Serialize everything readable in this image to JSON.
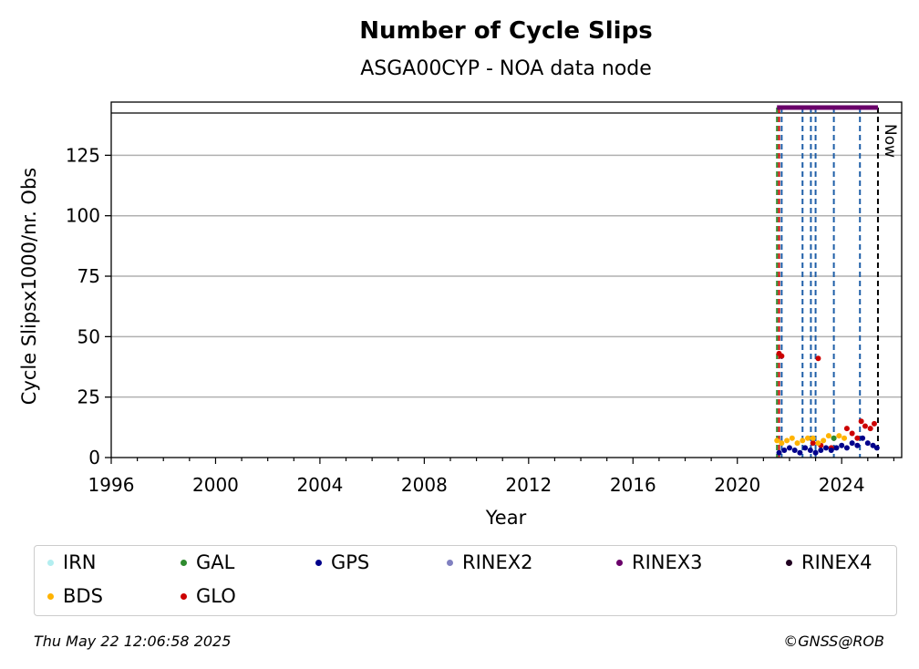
{
  "chart_data": {
    "type": "scatter",
    "title": "Number of Cycle Slips",
    "subtitle": "ASGA00CYP - NOA data node",
    "xlabel": "Year",
    "ylabel": "Cycle Slipsx1000/nr. Obs",
    "xlim": [
      1996,
      2026.3
    ],
    "ylim": [
      0,
      147
    ],
    "x_ticks": [
      "1996",
      "2000",
      "2004",
      "2008",
      "2012",
      "2016",
      "2020",
      "2024"
    ],
    "y_ticks": [
      "0",
      "25",
      "50",
      "75",
      "100",
      "125"
    ],
    "grid": "horizontal",
    "now_label": "Now",
    "now_x": 2025.39,
    "data_start_x": 2021.52,
    "rinex3_band": {
      "y": 147,
      "x_range": [
        2021.52,
        2025.39
      ]
    },
    "event_lines": [
      {
        "x": 2021.52,
        "color": "#2e8b2e"
      },
      {
        "x": 2021.6,
        "color": "#cc0000"
      },
      {
        "x": 2021.7,
        "color": "#1f5fa8"
      },
      {
        "x": 2022.5,
        "color": "#1f5fa8"
      },
      {
        "x": 2022.82,
        "color": "#1f5fa8"
      },
      {
        "x": 2023.0,
        "color": "#1f5fa8"
      },
      {
        "x": 2023.7,
        "color": "#1f5fa8"
      },
      {
        "x": 2024.7,
        "color": "#1f5fa8"
      }
    ],
    "series": [
      {
        "name": "GLO",
        "color": "#cc0000",
        "x": [
          2021.6,
          2021.7,
          2022.9,
          2023.1,
          2023.2,
          2023.6,
          2024.2,
          2024.4,
          2024.6,
          2024.75,
          2024.9,
          2025.1,
          2025.25
        ],
        "y": [
          43,
          42,
          6,
          41,
          5,
          4,
          12,
          10,
          8,
          15,
          13,
          12,
          14
        ]
      },
      {
        "name": "BDS",
        "color": "#ffb300",
        "x": [
          2021.52,
          2021.7,
          2021.9,
          2022.1,
          2022.3,
          2022.5,
          2022.7,
          2022.9,
          2023.1,
          2023.3,
          2023.5,
          2023.7,
          2023.9,
          2024.1
        ],
        "y": [
          7,
          6,
          7,
          8,
          6,
          7,
          8,
          8,
          6,
          7,
          9,
          8,
          9,
          8
        ]
      },
      {
        "name": "GAL",
        "color": "#2e8b2e",
        "x": [
          2023.7
        ],
        "y": [
          8
        ]
      },
      {
        "name": "GPS",
        "color": "#00008b",
        "x": [
          2021.6,
          2021.8,
          2022.0,
          2022.2,
          2022.4,
          2022.6,
          2022.8,
          2023.0,
          2023.2,
          2023.4,
          2023.6,
          2023.8,
          2024.0,
          2024.2,
          2024.4,
          2024.6,
          2024.8,
          2025.0,
          2025.2,
          2025.35
        ],
        "y": [
          2,
          3,
          4,
          3,
          2,
          4,
          3,
          2,
          3,
          4,
          3,
          4,
          5,
          4,
          6,
          5,
          8,
          6,
          5,
          4
        ]
      }
    ],
    "legend": [
      {
        "label": "IRN",
        "color": "#b3eef0"
      },
      {
        "label": "GAL",
        "color": "#2e8b2e"
      },
      {
        "label": "GPS",
        "color": "#00008b"
      },
      {
        "label": "RINEX2",
        "color": "#8080c0"
      },
      {
        "label": "RINEX3",
        "color": "#6a006a"
      },
      {
        "label": "RINEX4",
        "color": "#200020"
      },
      {
        "label": "BDS",
        "color": "#ffb300"
      },
      {
        "label": "GLO",
        "color": "#cc0000"
      }
    ]
  },
  "footer": {
    "timestamp": "Thu May 22 12:06:58 2025",
    "credit": "©GNSS@ROB"
  }
}
